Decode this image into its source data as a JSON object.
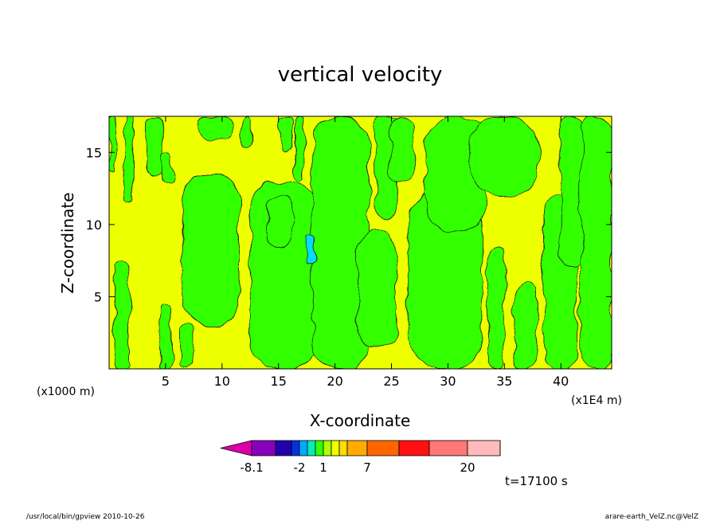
{
  "chart_data": {
    "type": "heatmap",
    "title": "vertical velocity",
    "xlabel": "X-coordinate",
    "ylabel": "Z-coordinate",
    "x_unit_left": "(x1000 m)",
    "x_unit_right": "(x1E4 m)",
    "xlim": [
      0,
      44.5
    ],
    "ylim": [
      0,
      17.5
    ],
    "x_ticks": [
      5,
      10,
      15,
      20,
      25,
      30,
      35,
      40
    ],
    "y_ticks": [
      5,
      10,
      15
    ],
    "background_color": "#eeff00",
    "colorbar": {
      "colors": [
        "#dd00aa",
        "#8800bb",
        "#2200aa",
        "#0033dd",
        "#00aaff",
        "#00eebb",
        "#33ff00",
        "#aaff00",
        "#eeff00",
        "#ffdd00",
        "#ffaa00",
        "#ff6600",
        "#ff1111",
        "#ff7777",
        "#ffbbbb",
        "#ffdddd"
      ],
      "tick_labels": [
        "-8.1",
        "-2",
        "1",
        "7",
        "20"
      ]
    },
    "green_regions": [
      {
        "x": [
          0,
          0.6
        ],
        "y": [
          13.5,
          17.5
        ]
      },
      {
        "x": [
          1.5,
          2.2
        ],
        "y": [
          11.5,
          17.5
        ]
      },
      {
        "x": [
          0.5,
          1.8
        ],
        "y": [
          0,
          7.5
        ]
      },
      {
        "x": [
          3.2,
          4.7
        ],
        "y": [
          13.5,
          17.5
        ]
      },
      {
        "x": [
          4.5,
          5.5
        ],
        "y": [
          0,
          4.5
        ]
      },
      {
        "x": [
          4.6,
          5.6
        ],
        "y": [
          12.8,
          15
        ]
      },
      {
        "x": [
          6.2,
          7.5
        ],
        "y": [
          0,
          3
        ]
      },
      {
        "x": [
          6.5,
          11.5
        ],
        "y": [
          3,
          13.5
        ]
      },
      {
        "x": [
          8,
          11
        ],
        "y": [
          15.8,
          17.5
        ]
      },
      {
        "x": [
          11.8,
          12.6
        ],
        "y": [
          15.5,
          17.5
        ]
      },
      {
        "x": [
          12.5,
          18.6
        ],
        "y": [
          0,
          13
        ]
      },
      {
        "x": [
          14,
          16.2
        ],
        "y": [
          8.5,
          12
        ]
      },
      {
        "x": [
          15.2,
          16.3
        ],
        "y": [
          15,
          17.5
        ]
      },
      {
        "x": [
          16.5,
          17.2
        ],
        "y": [
          13,
          17.5
        ]
      },
      {
        "x": [
          18,
          23
        ],
        "y": [
          0,
          17.5
        ]
      },
      {
        "x": [
          22,
          25.5
        ],
        "y": [
          1.5,
          9.5
        ]
      },
      {
        "x": [
          23.5,
          25.5
        ],
        "y": [
          10.5,
          17.5
        ]
      },
      {
        "x": [
          24.8,
          27
        ],
        "y": [
          13,
          17.5
        ]
      },
      {
        "x": [
          26.5,
          33
        ],
        "y": [
          0,
          12.5
        ]
      },
      {
        "x": [
          28,
          33.5
        ],
        "y": [
          9.5,
          17.5
        ]
      },
      {
        "x": [
          32,
          38
        ],
        "y": [
          12,
          17.5
        ]
      },
      {
        "x": [
          33.5,
          35
        ],
        "y": [
          0,
          8.5
        ]
      },
      {
        "x": [
          36,
          37.8
        ],
        "y": [
          0,
          6
        ]
      },
      {
        "x": [
          38.5,
          41.5
        ],
        "y": [
          0,
          12
        ]
      },
      {
        "x": [
          40,
          42
        ],
        "y": [
          7,
          17.5
        ]
      },
      {
        "x": [
          41.8,
          44.5
        ],
        "y": [
          0,
          17.5
        ]
      }
    ],
    "cyan_regions": [
      {
        "x": [
          17.5,
          18.2
        ],
        "y": [
          7.3,
          9.5
        ]
      }
    ],
    "time_label": "t=17100 s"
  },
  "footer": {
    "left": "/usr/local/bin/gpview   2010-10-26",
    "right": "arare-earth_VelZ.nc@VelZ"
  }
}
